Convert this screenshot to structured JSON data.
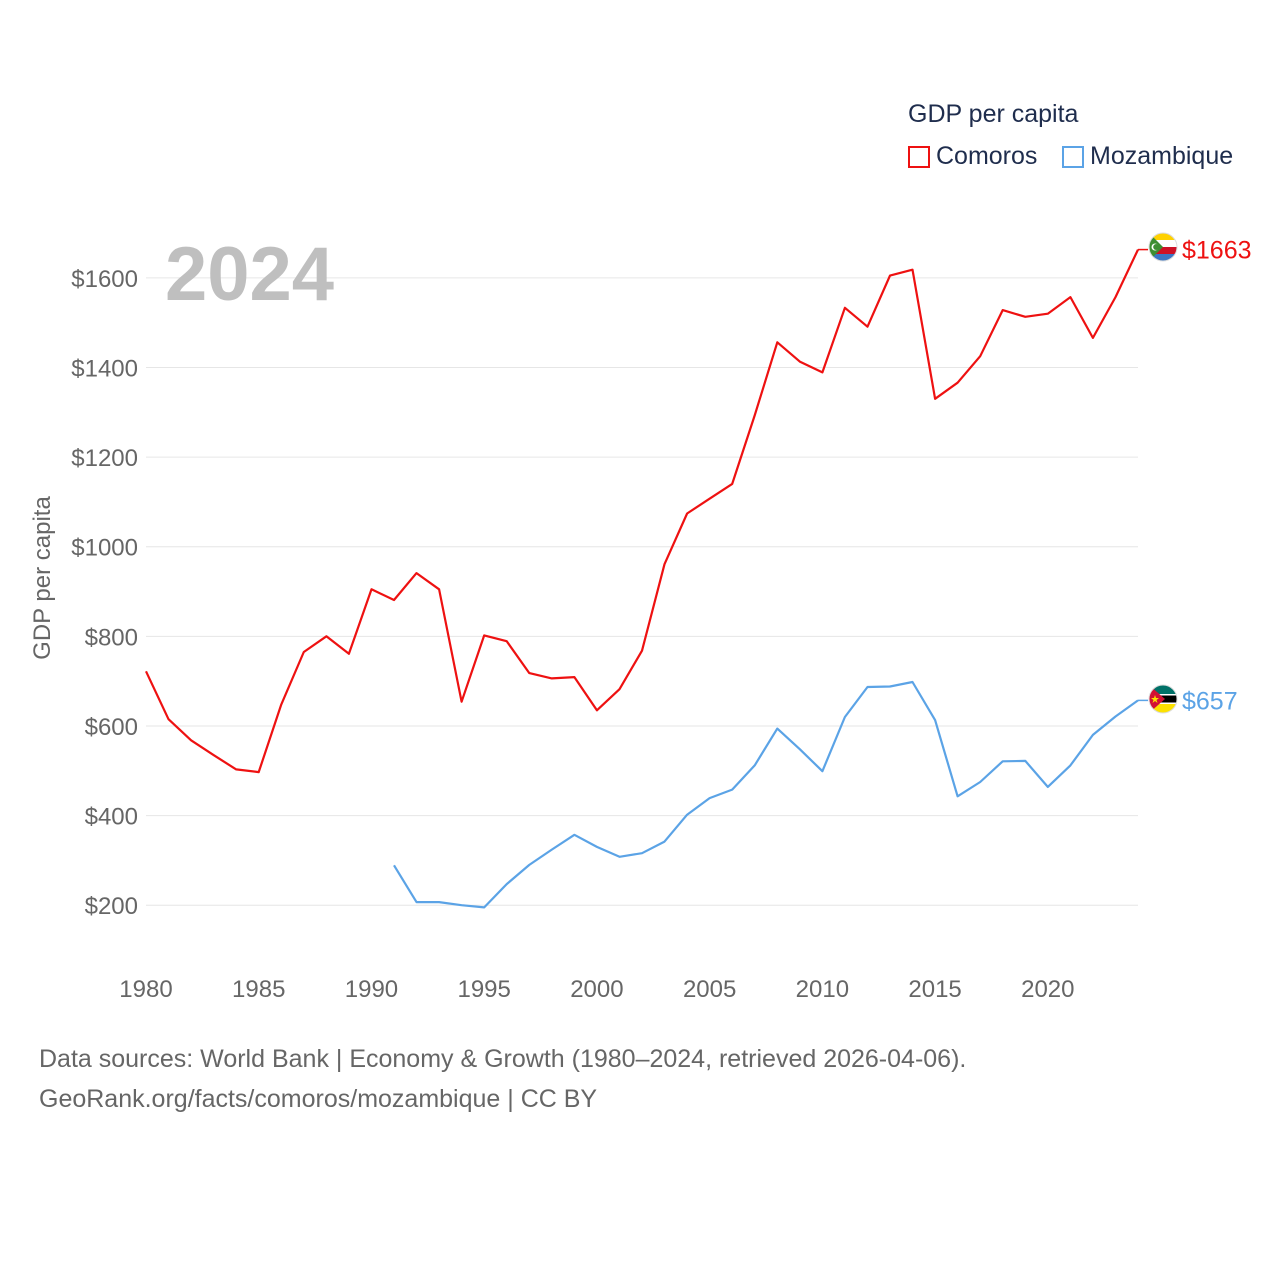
{
  "legend": {
    "title": "GDP per capita",
    "items": [
      {
        "label": "Comoros",
        "color": "#ee1111"
      },
      {
        "label": "Mozambique",
        "color": "#5ba3e6"
      }
    ]
  },
  "year_display": "2024",
  "source": {
    "line1": "Data sources: World Bank | Economy & Growth (1980–2024, retrieved 2026-04-06).",
    "line2": "GeoRank.org/facts/comoros/mozambique | CC BY"
  },
  "chart_data": {
    "type": "line",
    "title": "GDP per capita",
    "xlabel": "",
    "ylabel": "GDP per capita",
    "xlim": [
      1980,
      2024
    ],
    "ylim": [
      100,
      1700
    ],
    "x_ticks": [
      1980,
      1985,
      1990,
      1995,
      2000,
      2005,
      2010,
      2015,
      2020
    ],
    "x_tick_labels": [
      "1980",
      "1985",
      "1990",
      "1995",
      "2000",
      "2005",
      "2010",
      "2015",
      "2020"
    ],
    "y_ticks": [
      200,
      400,
      600,
      800,
      1000,
      1200,
      1400,
      1600
    ],
    "y_tick_labels": [
      "$200",
      "$400",
      "$600",
      "$800",
      "$1000",
      "$1200",
      "$1400",
      "$1600"
    ],
    "grid": true,
    "legend_position": "top-right",
    "series": [
      {
        "name": "Comoros",
        "color": "#ee1111",
        "end_label": "$1663",
        "flag_icon": "comoros-flag-icon",
        "x": [
          1980,
          1981,
          1982,
          1983,
          1984,
          1985,
          1986,
          1987,
          1988,
          1989,
          1990,
          1991,
          1992,
          1993,
          1994,
          1995,
          1996,
          1997,
          1998,
          1999,
          2000,
          2001,
          2002,
          2003,
          2004,
          2005,
          2006,
          2007,
          2008,
          2009,
          2010,
          2011,
          2012,
          2013,
          2014,
          2015,
          2016,
          2017,
          2018,
          2019,
          2020,
          2021,
          2022,
          2023,
          2024
        ],
        "values": [
          722,
          615,
          568,
          535,
          503,
          497,
          648,
          765,
          800,
          761,
          905,
          881,
          941,
          905,
          654,
          802,
          789,
          718,
          706,
          709,
          635,
          682,
          768,
          961,
          1074,
          1107,
          1140,
          1293,
          1456,
          1413,
          1389,
          1533,
          1491,
          1605,
          1618,
          1330,
          1366,
          1425,
          1528,
          1513,
          1520,
          1557,
          1466,
          1557,
          1663
        ]
      },
      {
        "name": "Mozambique",
        "color": "#5ba3e6",
        "end_label": "$657",
        "flag_icon": "mozambique-flag-icon",
        "x": [
          1991,
          1992,
          1993,
          1994,
          1995,
          1996,
          1997,
          1998,
          1999,
          2000,
          2001,
          2002,
          2003,
          2004,
          2005,
          2006,
          2007,
          2008,
          2009,
          2010,
          2011,
          2012,
          2013,
          2014,
          2015,
          2016,
          2017,
          2018,
          2019,
          2020,
          2021,
          2022,
          2023,
          2024
        ],
        "values": [
          289,
          207,
          207,
          200,
          195,
          247,
          290,
          324,
          357,
          330,
          308,
          316,
          342,
          402,
          439,
          458,
          512,
          594,
          548,
          499,
          620,
          687,
          688,
          698,
          613,
          443,
          475,
          521,
          522,
          464,
          512,
          580,
          621,
          657
        ]
      }
    ]
  }
}
